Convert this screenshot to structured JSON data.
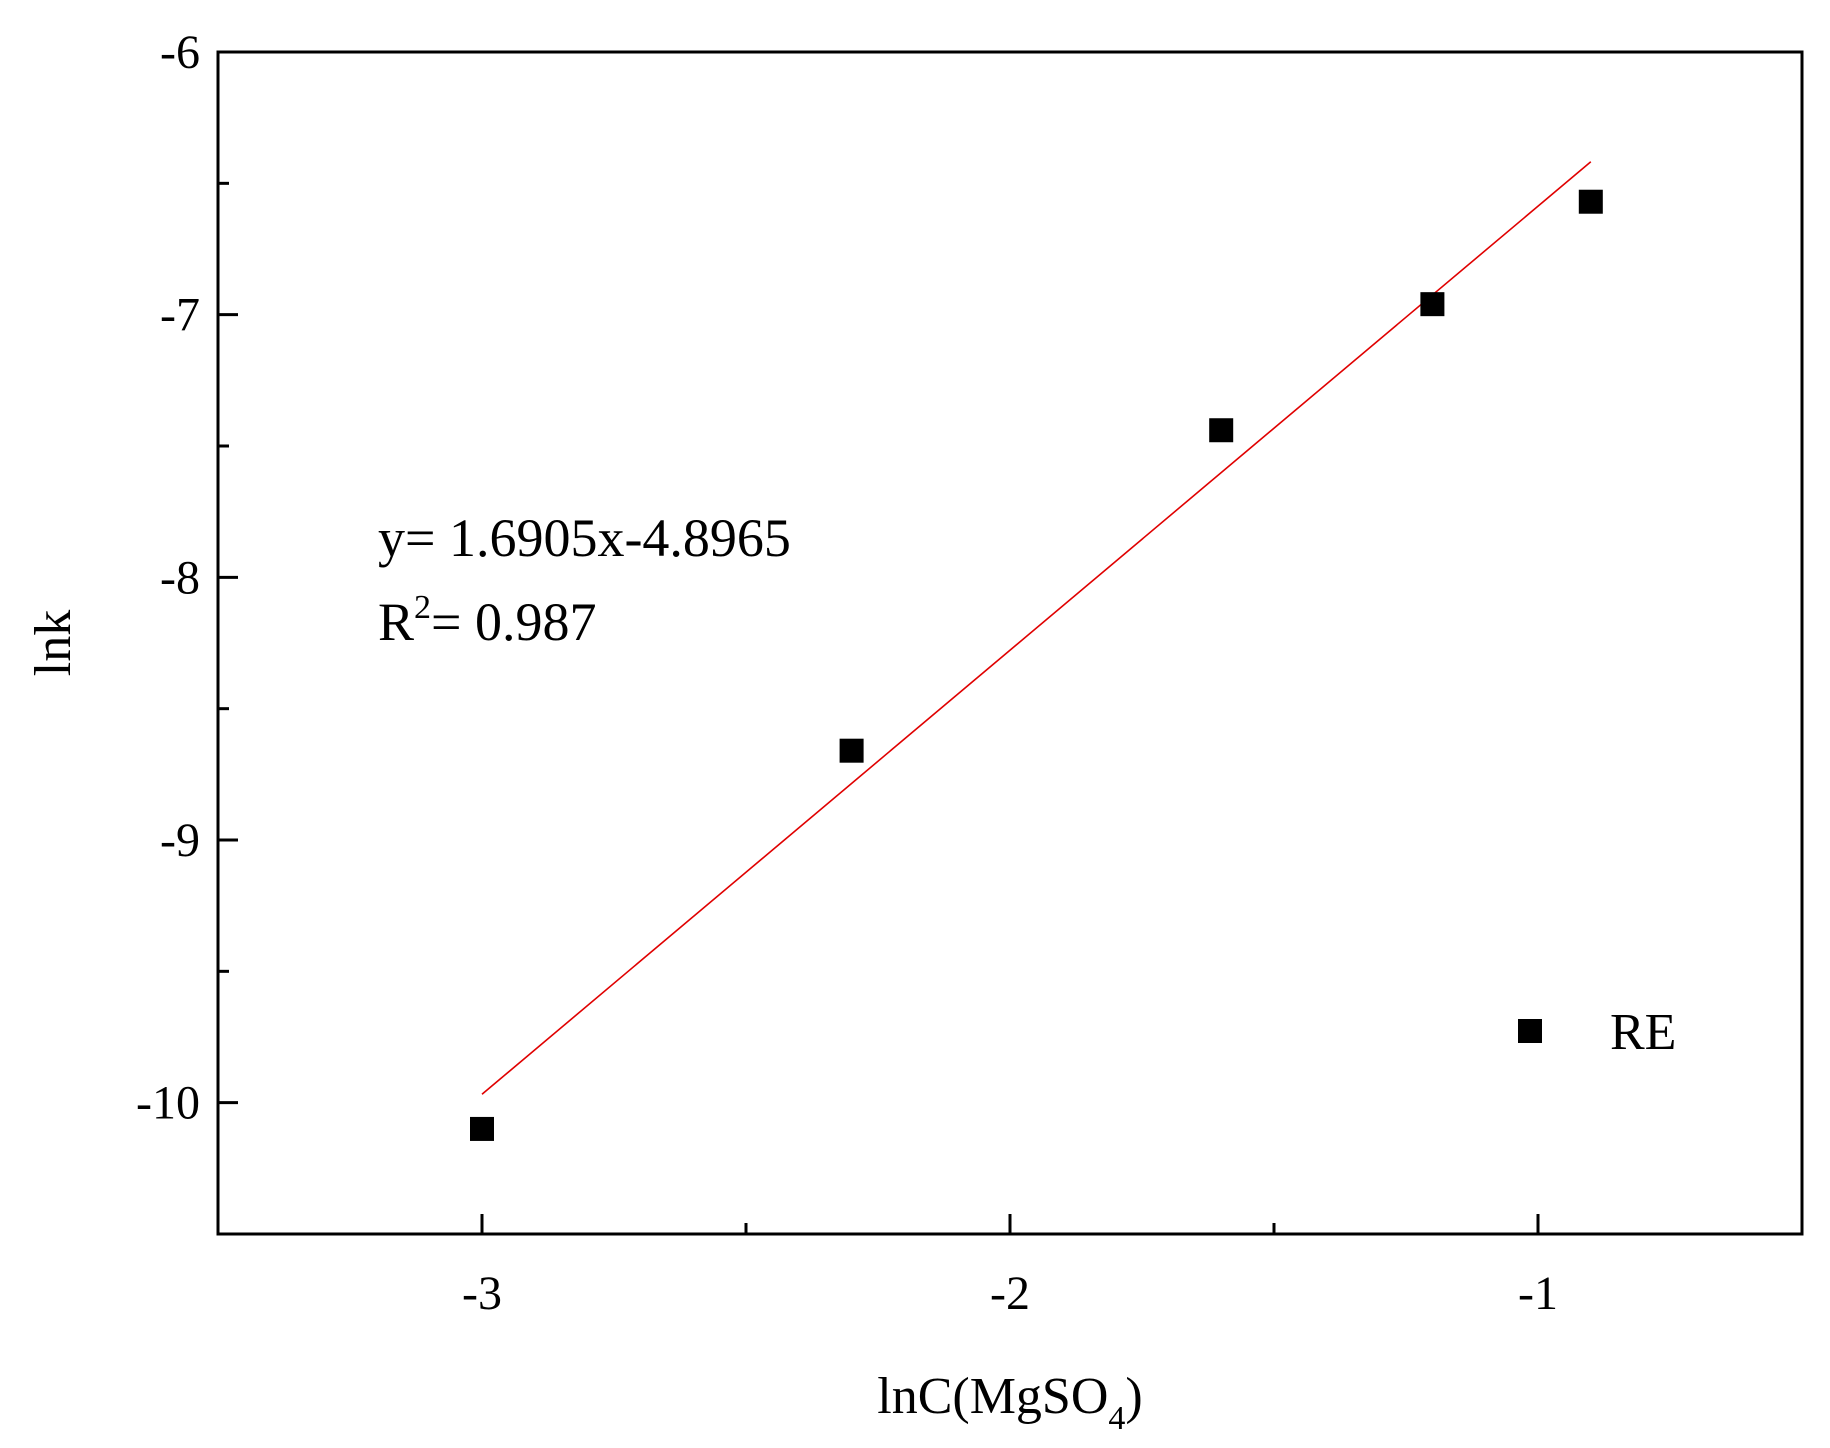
{
  "chart_data": {
    "type": "scatter",
    "xlabel_main": "lnC(MgSO",
    "xlabel_sub": "4",
    "xlabel_close": ")",
    "ylabel": "lnk",
    "xlim": [
      -3.5,
      -0.5
    ],
    "ylim": [
      -10.5,
      -6
    ],
    "xticks_major": [
      -3,
      -2,
      -1
    ],
    "xtick_labels": [
      "-3",
      "-2",
      "-1"
    ],
    "xticks_minor": [
      -2.5,
      -1.5
    ],
    "yticks_major": [
      -10,
      -9,
      -8,
      -7,
      -6
    ],
    "ytick_labels": [
      "-10",
      "-9",
      "-8",
      "-7",
      "-6"
    ],
    "yticks_minor": [
      -9.5,
      -8.5,
      -7.5,
      -6.5
    ],
    "grid": false,
    "series": [
      {
        "name": "RE",
        "marker": "square",
        "color": "#000000",
        "x": [
          -3.0,
          -2.3,
          -1.6,
          -1.2,
          -0.9
        ],
        "y": [
          -10.1,
          -8.66,
          -7.44,
          -6.96,
          -6.57
        ]
      }
    ],
    "fit": {
      "slope": 1.6905,
      "intercept": -4.8965,
      "x_range": [
        -3.0,
        -0.9
      ],
      "color": "#e00000"
    },
    "annotation": {
      "equation": "y= 1.6905x-4.8965",
      "r2_prefix": "R",
      "r2_sup": "2",
      "r2_value": "= 0.987"
    },
    "legend": {
      "label": "RE",
      "position": "bottom-right"
    }
  }
}
